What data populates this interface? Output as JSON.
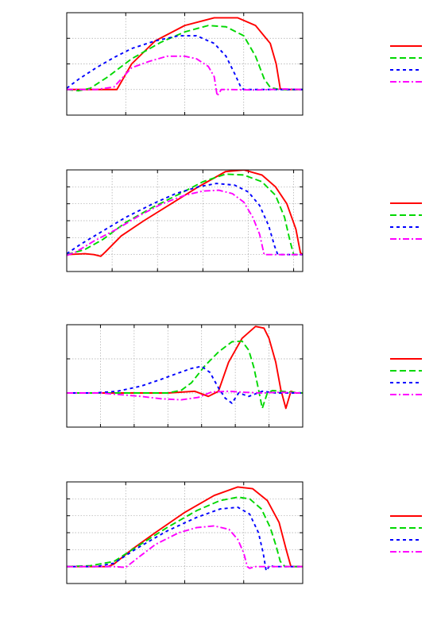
{
  "colors": {
    "red": "#ff0000",
    "green": "#00d800",
    "blue": "#0000ff",
    "magenta": "#ff00ff",
    "grid": "#a8a8a8",
    "frame": "#000000"
  },
  "chart_data": [
    {
      "type": "line",
      "title": "",
      "xlabel": "",
      "ylabel": "",
      "xlim": [
        0,
        4
      ],
      "ylim": [
        -1,
        3
      ],
      "xticks": [
        1,
        2,
        3
      ],
      "yticks": [
        0,
        1,
        2
      ],
      "grid": true,
      "legend": "right",
      "series": [
        {
          "color": "#ff0000",
          "dash": "solid",
          "x": [
            0,
            0.5,
            0.85,
            1.1,
            1.5,
            2.0,
            2.5,
            2.9,
            3.2,
            3.45,
            3.55,
            3.62,
            3.7,
            4.0
          ],
          "y": [
            0,
            0,
            0,
            1.0,
            1.9,
            2.5,
            2.8,
            2.8,
            2.5,
            1.8,
            1.0,
            0.02,
            0,
            0
          ]
        },
        {
          "color": "#00d800",
          "dash": "dash",
          "x": [
            0,
            0.2,
            0.4,
            0.7,
            1.1,
            1.6,
            2.0,
            2.4,
            2.7,
            3.0,
            3.2,
            3.35,
            3.45,
            3.6,
            3.8,
            4.0
          ],
          "y": [
            0,
            -0.05,
            0.05,
            0.5,
            1.2,
            1.85,
            2.25,
            2.5,
            2.45,
            2.1,
            1.3,
            0.4,
            0.08,
            0,
            0,
            0
          ]
        },
        {
          "color": "#0000ff",
          "dash": "dash-short",
          "x": [
            0,
            0.2,
            0.5,
            0.8,
            1.1,
            1.5,
            1.9,
            2.2,
            2.5,
            2.7,
            2.85,
            2.95,
            3.0,
            3.3,
            3.7,
            4.0
          ],
          "y": [
            0.05,
            0.4,
            0.85,
            1.25,
            1.6,
            1.9,
            2.1,
            2.1,
            1.8,
            1.3,
            0.6,
            0.1,
            0,
            0,
            0,
            0
          ]
        },
        {
          "color": "#ff00ff",
          "dash": "dashdot",
          "x": [
            0,
            0.5,
            0.8,
            1.1,
            1.4,
            1.7,
            2.0,
            2.2,
            2.4,
            2.5,
            2.55,
            2.62,
            2.75,
            3.2,
            3.7,
            4.0
          ],
          "y": [
            0,
            0,
            0.1,
            0.85,
            1.1,
            1.3,
            1.3,
            1.2,
            0.9,
            0.5,
            -0.25,
            0,
            0,
            -0.02,
            0.02,
            0
          ]
        }
      ],
      "legend_entries": [
        "",
        "",
        "",
        ""
      ]
    },
    {
      "type": "line",
      "title": "",
      "xlabel": "",
      "ylabel": "",
      "xlim": [
        0,
        5.2
      ],
      "ylim": [
        -1,
        5
      ],
      "xticks": [
        1,
        2,
        3,
        4,
        5
      ],
      "yticks": [
        0,
        1,
        2,
        3,
        4
      ],
      "grid": true,
      "legend": "right",
      "series": [
        {
          "color": "#ff0000",
          "dash": "solid",
          "x": [
            0,
            0.4,
            0.6,
            0.75,
            0.85,
            1.2,
            1.7,
            2.3,
            2.9,
            3.5,
            3.9,
            4.3,
            4.6,
            4.85,
            5.05,
            5.15,
            5.2
          ],
          "y": [
            0,
            0.05,
            0,
            -0.1,
            0.15,
            1.1,
            2.0,
            3.0,
            4.0,
            4.9,
            5.0,
            4.7,
            4.0,
            3.0,
            1.5,
            0.1,
            0
          ]
        },
        {
          "color": "#00d800",
          "dash": "dash",
          "x": [
            0,
            0.4,
            0.8,
            1.3,
            1.9,
            2.5,
            3.0,
            3.5,
            3.9,
            4.3,
            4.6,
            4.8,
            4.92,
            5.0,
            5.2
          ],
          "y": [
            0,
            0.3,
            0.9,
            1.9,
            2.8,
            3.6,
            4.3,
            4.75,
            4.7,
            4.3,
            3.5,
            2.2,
            0.8,
            0,
            0
          ]
        },
        {
          "color": "#0000ff",
          "dash": "dash-short",
          "x": [
            0,
            0.3,
            0.8,
            1.3,
            1.9,
            2.4,
            2.9,
            3.3,
            3.7,
            4.0,
            4.25,
            4.45,
            4.58,
            4.65,
            5.2
          ],
          "y": [
            0.05,
            0.6,
            1.4,
            2.2,
            3.0,
            3.6,
            4.0,
            4.2,
            4.1,
            3.7,
            2.9,
            1.7,
            0.5,
            0,
            0
          ]
        },
        {
          "color": "#ff00ff",
          "dash": "dashdot",
          "x": [
            0,
            0.2,
            0.6,
            1.1,
            1.6,
            2.1,
            2.6,
            3.0,
            3.35,
            3.65,
            3.9,
            4.1,
            4.25,
            4.35,
            4.6,
            5.2
          ],
          "y": [
            -0.05,
            0.15,
            0.8,
            1.5,
            2.3,
            3.0,
            3.5,
            3.75,
            3.8,
            3.6,
            3.1,
            2.2,
            1.2,
            0,
            0,
            0
          ]
        }
      ],
      "legend_entries": [
        "",
        "",
        "",
        ""
      ]
    },
    {
      "type": "line",
      "title": "",
      "xlabel": "",
      "ylabel": "",
      "xlim": [
        0,
        7
      ],
      "ylim": [
        -1,
        2
      ],
      "xticks": [
        1,
        2,
        3,
        4,
        5,
        6
      ],
      "yticks": [
        0,
        1
      ],
      "grid": true,
      "legend": "right",
      "series": [
        {
          "color": "#ff0000",
          "dash": "solid",
          "x": [
            0,
            1,
            2,
            3,
            3.8,
            4.2,
            4.5,
            4.8,
            5.2,
            5.6,
            5.85,
            6.0,
            6.2,
            6.35,
            6.5,
            6.65,
            6.8,
            7.0
          ],
          "y": [
            0,
            0,
            0,
            0,
            0.05,
            -0.1,
            0.05,
            0.9,
            1.6,
            1.95,
            1.9,
            1.6,
            0.9,
            0.1,
            -0.45,
            0.05,
            0,
            0
          ]
        },
        {
          "color": "#00d800",
          "dash": "dash",
          "x": [
            0,
            1,
            2,
            3,
            3.4,
            3.7,
            4.1,
            4.5,
            4.9,
            5.2,
            5.4,
            5.55,
            5.7,
            5.8,
            5.95,
            6.1,
            7.0
          ],
          "y": [
            0,
            0,
            0,
            0,
            0.08,
            0.3,
            0.8,
            1.2,
            1.5,
            1.52,
            1.25,
            0.75,
            0.05,
            -0.45,
            0,
            0.07,
            0
          ]
        },
        {
          "color": "#0000ff",
          "dash": "dash-short",
          "x": [
            0,
            0.8,
            1.5,
            2.2,
            2.8,
            3.3,
            3.7,
            4.0,
            4.25,
            4.5,
            4.7,
            4.9,
            5.1,
            5.4,
            5.8,
            6.2,
            7.0
          ],
          "y": [
            0,
            0,
            0.05,
            0.2,
            0.4,
            0.58,
            0.72,
            0.78,
            0.6,
            0.15,
            -0.15,
            -0.3,
            0,
            -0.1,
            0.05,
            0,
            0
          ]
        },
        {
          "color": "#ff00ff",
          "dash": "dashdot",
          "x": [
            0,
            1,
            1.6,
            2.2,
            2.8,
            3.4,
            3.9,
            4.3,
            4.8,
            5.3,
            5.8,
            6.3,
            7.0
          ],
          "y": [
            0,
            0,
            -0.05,
            -0.1,
            -0.17,
            -0.2,
            -0.13,
            0.03,
            0.05,
            0.02,
            0,
            0.02,
            0
          ]
        }
      ],
      "legend_entries": [
        "",
        "",
        "",
        ""
      ]
    },
    {
      "type": "line",
      "title": "",
      "xlabel": "",
      "ylabel": "",
      "xlim": [
        0,
        4
      ],
      "ylim": [
        -1,
        5
      ],
      "xticks": [
        1,
        2,
        3
      ],
      "yticks": [
        0,
        1,
        2,
        3,
        4
      ],
      "grid": true,
      "legend": "right",
      "series": [
        {
          "color": "#ff0000",
          "dash": "solid",
          "x": [
            0,
            0.5,
            0.7,
            0.8,
            1.1,
            1.5,
            2.0,
            2.5,
            2.9,
            3.15,
            3.4,
            3.6,
            3.72,
            3.8,
            4.0
          ],
          "y": [
            0,
            0,
            0,
            0.15,
            1.0,
            2.0,
            3.2,
            4.2,
            4.7,
            4.6,
            3.9,
            2.6,
            1.0,
            0,
            0
          ]
        },
        {
          "color": "#00d800",
          "dash": "dash",
          "x": [
            0,
            0.4,
            0.8,
            1.2,
            1.7,
            2.2,
            2.6,
            2.9,
            3.1,
            3.3,
            3.45,
            3.55,
            3.62,
            3.7,
            4.0
          ],
          "y": [
            0,
            0.05,
            0.3,
            1.2,
            2.3,
            3.3,
            3.9,
            4.1,
            4.0,
            3.4,
            2.3,
            1.2,
            0.3,
            0,
            0
          ]
        },
        {
          "color": "#0000ff",
          "dash": "dash-short",
          "x": [
            0,
            0.5,
            0.8,
            1.2,
            1.7,
            2.2,
            2.6,
            2.9,
            3.1,
            3.25,
            3.33,
            3.38,
            3.45,
            3.5,
            3.6,
            4.0
          ],
          "y": [
            0,
            0,
            0.2,
            1.1,
            2.1,
            2.9,
            3.4,
            3.5,
            3.1,
            2.0,
            0.8,
            -0.25,
            0.1,
            0,
            0,
            0
          ]
        },
        {
          "color": "#ff00ff",
          "dash": "dashdot",
          "x": [
            0,
            0.8,
            1.0,
            1.2,
            1.5,
            1.9,
            2.2,
            2.5,
            2.75,
            2.9,
            3.0,
            3.06,
            3.1,
            3.2,
            3.6,
            4.0
          ],
          "y": [
            0,
            0,
            -0.05,
            0.5,
            1.3,
            2.0,
            2.3,
            2.4,
            2.2,
            1.6,
            0.8,
            0.0,
            -0.1,
            0,
            0,
            0
          ]
        }
      ],
      "legend_entries": [
        "",
        "",
        "",
        ""
      ]
    }
  ]
}
